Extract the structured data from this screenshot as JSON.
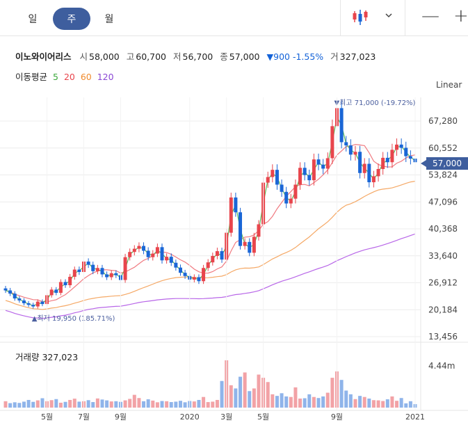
{
  "toolbar": {
    "periods": [
      {
        "label": "일"
      },
      {
        "label": "주"
      },
      {
        "label": "월"
      }
    ],
    "active_period": 1,
    "window_minimize": "—",
    "window_add": "+"
  },
  "stock": {
    "name": "이노와이어리스",
    "open_label": "시",
    "open": "58,000",
    "high_label": "고",
    "high": "60,700",
    "low_label": "저",
    "low": "56,700",
    "close_label": "종",
    "close": "57,000",
    "change": "▼900 -1.55%",
    "volume_label": "거",
    "volume": "327,023"
  },
  "moving_average": {
    "label": "이동평균",
    "periods": [
      {
        "value": "5",
        "color": "#3aa83a"
      },
      {
        "value": "20",
        "color": "#e8454c"
      },
      {
        "value": "60",
        "color": "#f08a2c"
      },
      {
        "value": "120",
        "color": "#8a47d4"
      }
    ]
  },
  "scale_type": "Linear",
  "colors": {
    "up": "#e8454c",
    "down": "#1a66d6",
    "accent": "#3e5e9e"
  },
  "chart_data": {
    "type": "candlestick",
    "yticks": [
      "67,280",
      "60,552",
      "53,824",
      "47,096",
      "40,368",
      "33,640",
      "26,912",
      "20,184",
      "13,456"
    ],
    "ytick_values": [
      67280,
      60552,
      53824,
      47096,
      40368,
      33640,
      26912,
      20184,
      13456
    ],
    "xticks": [
      {
        "label": "5월",
        "i": 9
      },
      {
        "label": "7월",
        "i": 17
      },
      {
        "label": "9월",
        "i": 25
      },
      {
        "label": "2020",
        "i": 40
      },
      {
        "label": "3월",
        "i": 48
      },
      {
        "label": "5월",
        "i": 56
      },
      {
        "label": "9월",
        "i": 72
      },
      {
        "label": "2021",
        "i": 89
      }
    ],
    "current_price": "57,000",
    "max_annotation": "▼최고 71,000 (-19.72%)",
    "min_annotation": "▲최저 19,950 (185.71%)",
    "volume_title": "거래량 327,023",
    "volume_max_label": "4.44m",
    "volume_max": 4440000,
    "closes": [
      25000,
      24200,
      23000,
      22500,
      21800,
      21400,
      21000,
      22200,
      21600,
      23800,
      25200,
      24400,
      27100,
      26300,
      28400,
      30200,
      29600,
      32200,
      31400,
      29800,
      30600,
      29000,
      28300,
      29300,
      28800,
      27600,
      33300,
      34600,
      35400,
      36100,
      34900,
      33300,
      34200,
      35800,
      32500,
      33400,
      31900,
      30700,
      29400,
      28600,
      27700,
      28300,
      27300,
      30600,
      32000,
      33600,
      34800,
      32700,
      39400,
      48200,
      44500,
      36100,
      37100,
      34400,
      38400,
      41500,
      51900,
      53300,
      55100,
      51400,
      49600,
      46700,
      47900,
      51400,
      55600,
      53800,
      52500,
      57700,
      56400,
      55400,
      58000,
      66000,
      70500,
      62000,
      61200,
      58900,
      59600,
      54300,
      56600,
      52000,
      53500,
      55300,
      58100,
      57000,
      60100,
      61400,
      60600,
      58500,
      57900,
      57000
    ],
    "volumes": [
      600000,
      420000,
      500000,
      440000,
      560000,
      720000,
      540000,
      680000,
      880000,
      600000,
      700000,
      800000,
      460000,
      540000,
      720000,
      840000,
      560000,
      600000,
      700000,
      520000,
      860000,
      760000,
      680000,
      580000,
      600000,
      540000,
      680000,
      820000,
      1200000,
      900000,
      600000,
      780000,
      660000,
      500000,
      620000,
      600000,
      520000,
      560000,
      640000,
      500000,
      620000,
      580000,
      720000,
      1000000,
      520000,
      560000,
      720000,
      2500000,
      4440000,
      2100000,
      1800000,
      2900000,
      3300000,
      1550000,
      1800000,
      3100000,
      2800000,
      2400000,
      1250000,
      1100000,
      1350000,
      1050000,
      1000000,
      1900000,
      850000,
      880000,
      1250000,
      1000000,
      900000,
      1050000,
      1400000,
      2800000,
      3400000,
      2600000,
      1600000,
      1250000,
      800000,
      1100000,
      1000000,
      850000,
      700000,
      680000,
      620000,
      780000,
      1050000,
      640000,
      900000,
      400000,
      600000,
      327023
    ]
  }
}
